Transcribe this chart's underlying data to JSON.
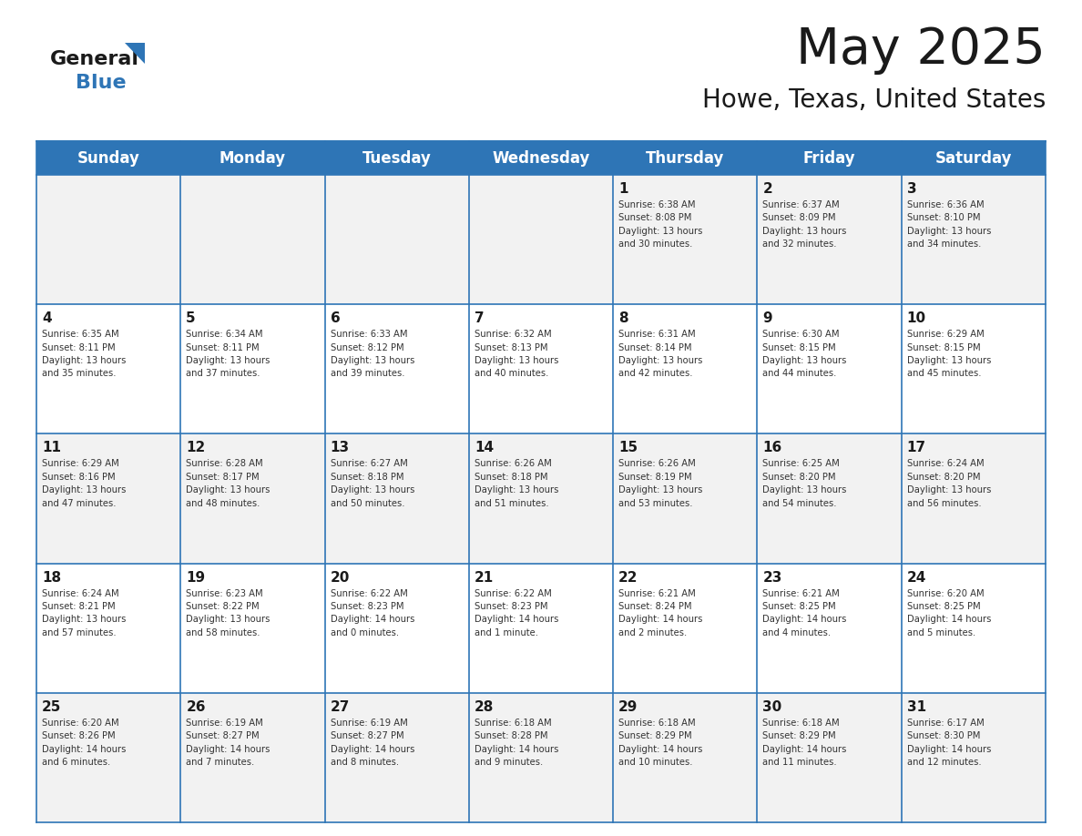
{
  "title": "May 2025",
  "subtitle": "Howe, Texas, United States",
  "header_bg_color": "#2E75B6",
  "header_text_color": "#FFFFFF",
  "cell_bg_even": "#F2F2F2",
  "cell_bg_odd": "#FFFFFF",
  "text_color": "#333333",
  "day_number_color": "#1a1a1a",
  "days_of_week": [
    "Sunday",
    "Monday",
    "Tuesday",
    "Wednesday",
    "Thursday",
    "Friday",
    "Saturday"
  ],
  "weeks": [
    [
      {
        "day": null,
        "info": null
      },
      {
        "day": null,
        "info": null
      },
      {
        "day": null,
        "info": null
      },
      {
        "day": null,
        "info": null
      },
      {
        "day": 1,
        "info": "Sunrise: 6:38 AM\nSunset: 8:08 PM\nDaylight: 13 hours\nand 30 minutes."
      },
      {
        "day": 2,
        "info": "Sunrise: 6:37 AM\nSunset: 8:09 PM\nDaylight: 13 hours\nand 32 minutes."
      },
      {
        "day": 3,
        "info": "Sunrise: 6:36 AM\nSunset: 8:10 PM\nDaylight: 13 hours\nand 34 minutes."
      }
    ],
    [
      {
        "day": 4,
        "info": "Sunrise: 6:35 AM\nSunset: 8:11 PM\nDaylight: 13 hours\nand 35 minutes."
      },
      {
        "day": 5,
        "info": "Sunrise: 6:34 AM\nSunset: 8:11 PM\nDaylight: 13 hours\nand 37 minutes."
      },
      {
        "day": 6,
        "info": "Sunrise: 6:33 AM\nSunset: 8:12 PM\nDaylight: 13 hours\nand 39 minutes."
      },
      {
        "day": 7,
        "info": "Sunrise: 6:32 AM\nSunset: 8:13 PM\nDaylight: 13 hours\nand 40 minutes."
      },
      {
        "day": 8,
        "info": "Sunrise: 6:31 AM\nSunset: 8:14 PM\nDaylight: 13 hours\nand 42 minutes."
      },
      {
        "day": 9,
        "info": "Sunrise: 6:30 AM\nSunset: 8:15 PM\nDaylight: 13 hours\nand 44 minutes."
      },
      {
        "day": 10,
        "info": "Sunrise: 6:29 AM\nSunset: 8:15 PM\nDaylight: 13 hours\nand 45 minutes."
      }
    ],
    [
      {
        "day": 11,
        "info": "Sunrise: 6:29 AM\nSunset: 8:16 PM\nDaylight: 13 hours\nand 47 minutes."
      },
      {
        "day": 12,
        "info": "Sunrise: 6:28 AM\nSunset: 8:17 PM\nDaylight: 13 hours\nand 48 minutes."
      },
      {
        "day": 13,
        "info": "Sunrise: 6:27 AM\nSunset: 8:18 PM\nDaylight: 13 hours\nand 50 minutes."
      },
      {
        "day": 14,
        "info": "Sunrise: 6:26 AM\nSunset: 8:18 PM\nDaylight: 13 hours\nand 51 minutes."
      },
      {
        "day": 15,
        "info": "Sunrise: 6:26 AM\nSunset: 8:19 PM\nDaylight: 13 hours\nand 53 minutes."
      },
      {
        "day": 16,
        "info": "Sunrise: 6:25 AM\nSunset: 8:20 PM\nDaylight: 13 hours\nand 54 minutes."
      },
      {
        "day": 17,
        "info": "Sunrise: 6:24 AM\nSunset: 8:20 PM\nDaylight: 13 hours\nand 56 minutes."
      }
    ],
    [
      {
        "day": 18,
        "info": "Sunrise: 6:24 AM\nSunset: 8:21 PM\nDaylight: 13 hours\nand 57 minutes."
      },
      {
        "day": 19,
        "info": "Sunrise: 6:23 AM\nSunset: 8:22 PM\nDaylight: 13 hours\nand 58 minutes."
      },
      {
        "day": 20,
        "info": "Sunrise: 6:22 AM\nSunset: 8:23 PM\nDaylight: 14 hours\nand 0 minutes."
      },
      {
        "day": 21,
        "info": "Sunrise: 6:22 AM\nSunset: 8:23 PM\nDaylight: 14 hours\nand 1 minute."
      },
      {
        "day": 22,
        "info": "Sunrise: 6:21 AM\nSunset: 8:24 PM\nDaylight: 14 hours\nand 2 minutes."
      },
      {
        "day": 23,
        "info": "Sunrise: 6:21 AM\nSunset: 8:25 PM\nDaylight: 14 hours\nand 4 minutes."
      },
      {
        "day": 24,
        "info": "Sunrise: 6:20 AM\nSunset: 8:25 PM\nDaylight: 14 hours\nand 5 minutes."
      }
    ],
    [
      {
        "day": 25,
        "info": "Sunrise: 6:20 AM\nSunset: 8:26 PM\nDaylight: 14 hours\nand 6 minutes."
      },
      {
        "day": 26,
        "info": "Sunrise: 6:19 AM\nSunset: 8:27 PM\nDaylight: 14 hours\nand 7 minutes."
      },
      {
        "day": 27,
        "info": "Sunrise: 6:19 AM\nSunset: 8:27 PM\nDaylight: 14 hours\nand 8 minutes."
      },
      {
        "day": 28,
        "info": "Sunrise: 6:18 AM\nSunset: 8:28 PM\nDaylight: 14 hours\nand 9 minutes."
      },
      {
        "day": 29,
        "info": "Sunrise: 6:18 AM\nSunset: 8:29 PM\nDaylight: 14 hours\nand 10 minutes."
      },
      {
        "day": 30,
        "info": "Sunrise: 6:18 AM\nSunset: 8:29 PM\nDaylight: 14 hours\nand 11 minutes."
      },
      {
        "day": 31,
        "info": "Sunrise: 6:17 AM\nSunset: 8:30 PM\nDaylight: 14 hours\nand 12 minutes."
      }
    ]
  ],
  "grid_line_color": "#2E75B6",
  "fig_width": 11.88,
  "fig_height": 9.18,
  "dpi": 100
}
